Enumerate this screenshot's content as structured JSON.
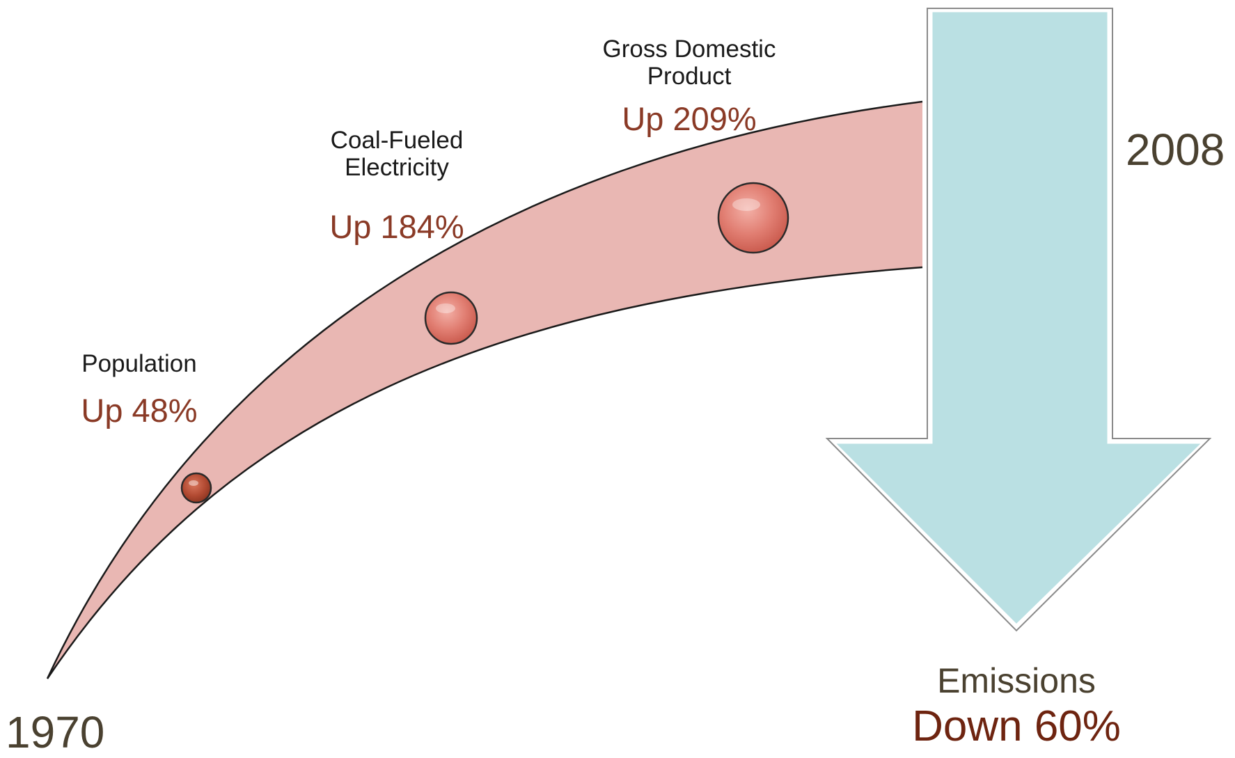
{
  "timeline": {
    "start_year": "1970",
    "end_year": "2008"
  },
  "metrics": [
    {
      "name": "Population",
      "change": "Up 48%"
    },
    {
      "name_line1": "Coal-Fueled",
      "name_line2": "Electricity",
      "change": "Up 184%"
    },
    {
      "name_line1": "Gross Domestic",
      "name_line2": "Product",
      "change": "Up 209%"
    }
  ],
  "emissions": {
    "name": "Emissions",
    "change": "Down 60%"
  },
  "colors": {
    "growth_band": "#e9b7b3",
    "bubble": "#e17e72",
    "bubble_small": "#b24a32",
    "down_arrow": "#bae0e3",
    "up_text": "#8a3a26",
    "down_text": "#6e2410",
    "year_text": "#4a4130"
  }
}
